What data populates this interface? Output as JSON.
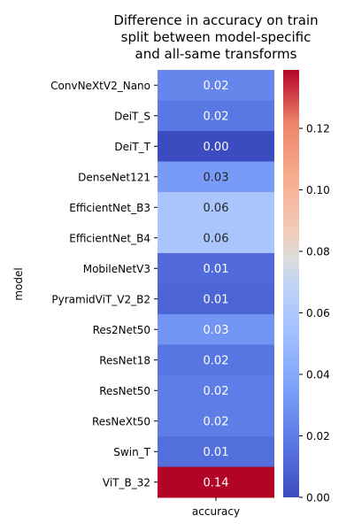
{
  "chart_data": {
    "type": "heatmap",
    "title_lines": [
      "Difference in accuracy on train",
      "split between model-specific",
      "and all-same transforms"
    ],
    "xlabel": "accuracy",
    "ylabel": "model",
    "rows": [
      {
        "label": "ConvNeXtV2_Nano",
        "value": 0.024,
        "text": "0.02"
      },
      {
        "label": "DeiT_S",
        "value": 0.018,
        "text": "0.02"
      },
      {
        "label": "DeiT_T",
        "value": 0.0,
        "text": "0.00"
      },
      {
        "label": "DenseNet121",
        "value": 0.033,
        "text": "0.03"
      },
      {
        "label": "EfficientNet_B3",
        "value": 0.058,
        "text": "0.06"
      },
      {
        "label": "EfficientNet_B4",
        "value": 0.058,
        "text": "0.06"
      },
      {
        "label": "MobileNetV3",
        "value": 0.013,
        "text": "0.01"
      },
      {
        "label": "PyramidViT_V2_B2",
        "value": 0.01,
        "text": "0.01"
      },
      {
        "label": "Res2Net50",
        "value": 0.03,
        "text": "0.03"
      },
      {
        "label": "ResNet18",
        "value": 0.017,
        "text": "0.02"
      },
      {
        "label": "ResNet50",
        "value": 0.02,
        "text": "0.02"
      },
      {
        "label": "ResNeXt50",
        "value": 0.02,
        "text": "0.02"
      },
      {
        "label": "Swin_T",
        "value": 0.014,
        "text": "0.01"
      },
      {
        "label": "ViT_B_32",
        "value": 0.139,
        "text": "0.14"
      }
    ],
    "colorbar": {
      "colormap": "coolwarm",
      "range": [
        0,
        0.139
      ],
      "ticks": [
        0.0,
        0.02,
        0.04,
        0.06,
        0.08,
        0.1,
        0.12
      ],
      "tick_labels": [
        "0.00",
        "0.02",
        "0.04",
        "0.06",
        "0.08",
        "0.10",
        "0.12"
      ]
    }
  }
}
